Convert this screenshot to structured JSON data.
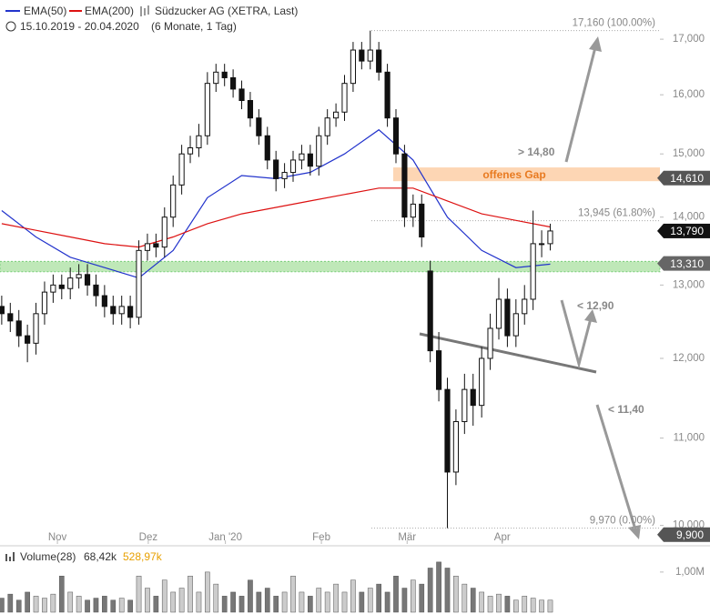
{
  "chart_data": {
    "type": "candlestick",
    "title": "Südzucker AG (XETRA, Last)",
    "subtitle": "15.10.2019 - 20.04.2020",
    "period": "(6 Monate, 1 Tag)",
    "open": [
      12.7,
      12.6,
      12.5,
      12.3,
      12.2,
      12.6,
      12.9,
      13.0,
      12.95,
      13.1,
      13.15,
      13.0,
      12.85,
      12.7,
      12.6,
      12.7,
      12.55,
      13.5,
      13.6,
      13.55,
      14.0,
      14.5,
      15.0,
      15.1,
      15.3,
      16.2,
      16.4,
      16.3,
      16.1,
      15.9,
      15.6,
      15.3,
      14.9,
      14.6,
      14.7,
      14.9,
      15.0,
      14.8,
      15.3,
      15.6,
      15.7,
      16.2,
      16.8,
      16.6,
      16.8,
      16.4,
      15.6,
      15.0,
      14.0,
      14.2,
      13.2,
      12.1,
      11.6,
      10.6,
      11.2,
      11.6,
      11.4,
      12.0,
      12.4,
      12.8,
      12.3,
      12.6,
      12.8,
      13.6,
      13.6
    ],
    "high": [
      12.85,
      12.75,
      12.65,
      12.45,
      12.75,
      13.05,
      13.15,
      13.15,
      13.25,
      13.3,
      13.3,
      13.15,
      13.0,
      12.85,
      12.85,
      12.85,
      13.65,
      13.75,
      13.75,
      14.15,
      14.65,
      15.15,
      15.3,
      15.5,
      16.4,
      16.55,
      16.55,
      16.45,
      16.25,
      16.05,
      15.75,
      15.45,
      15.05,
      14.85,
      15.05,
      15.15,
      15.15,
      15.45,
      15.75,
      15.85,
      16.35,
      16.95,
      16.95,
      17.16,
      16.95,
      16.55,
      15.75,
      15.15,
      14.35,
      14.35,
      13.35,
      12.35,
      11.75,
      11.35,
      11.8,
      11.8,
      12.15,
      12.6,
      13.1,
      12.95,
      12.8,
      13.0,
      14.1,
      13.8,
      13.9
    ],
    "low": [
      12.45,
      12.35,
      12.15,
      11.95,
      12.05,
      12.45,
      12.75,
      12.8,
      12.8,
      12.95,
      12.85,
      12.7,
      12.55,
      12.45,
      12.45,
      12.4,
      12.45,
      13.35,
      13.4,
      13.4,
      13.85,
      14.35,
      14.85,
      14.95,
      15.15,
      16.05,
      16.15,
      15.95,
      15.75,
      15.45,
      15.15,
      14.75,
      14.4,
      14.45,
      14.55,
      14.75,
      14.65,
      14.65,
      15.15,
      15.45,
      15.55,
      16.05,
      16.45,
      16.45,
      16.25,
      15.45,
      14.85,
      13.85,
      13.85,
      13.55,
      11.95,
      11.45,
      9.97,
      10.45,
      11.05,
      11.15,
      11.25,
      11.85,
      12.25,
      12.15,
      12.15,
      12.45,
      12.65,
      13.4,
      13.5
    ],
    "close": [
      12.6,
      12.5,
      12.3,
      12.2,
      12.6,
      12.9,
      13.0,
      12.95,
      13.1,
      13.15,
      13.0,
      12.85,
      12.7,
      12.6,
      12.7,
      12.55,
      13.5,
      13.6,
      13.55,
      14.0,
      14.5,
      15.0,
      15.1,
      15.3,
      16.2,
      16.4,
      16.3,
      16.1,
      15.9,
      15.6,
      15.3,
      14.9,
      14.6,
      14.7,
      14.9,
      15.0,
      14.8,
      15.3,
      15.6,
      15.7,
      16.2,
      16.8,
      16.6,
      16.8,
      16.4,
      15.6,
      15.0,
      14.0,
      14.2,
      13.7,
      12.1,
      11.6,
      10.6,
      11.2,
      11.6,
      11.4,
      12.0,
      12.4,
      12.8,
      12.3,
      12.6,
      12.8,
      13.6,
      13.6,
      13.79
    ],
    "volume": [
      0.35,
      0.45,
      0.3,
      0.5,
      0.4,
      0.35,
      0.45,
      0.9,
      0.5,
      0.4,
      0.3,
      0.35,
      0.4,
      0.3,
      0.35,
      0.3,
      0.9,
      0.6,
      0.4,
      0.8,
      0.5,
      0.6,
      0.9,
      0.5,
      1.0,
      0.7,
      0.4,
      0.5,
      0.4,
      0.8,
      0.5,
      0.6,
      0.4,
      0.5,
      0.9,
      0.5,
      0.4,
      0.6,
      0.5,
      0.7,
      0.5,
      0.8,
      0.5,
      0.6,
      0.7,
      0.5,
      0.9,
      0.6,
      0.8,
      0.7,
      1.1,
      1.25,
      1.1,
      0.9,
      0.7,
      0.6,
      0.5,
      0.4,
      0.45,
      0.4,
      0.3,
      0.4,
      0.35,
      0.3,
      0.3
    ],
    "series": [
      {
        "name": "EMA(50)",
        "color": "#2233cc",
        "x": [
          0,
          4,
          8,
          12,
          16,
          20,
          24,
          28,
          32,
          36,
          40,
          44,
          48,
          52,
          56,
          60,
          64
        ],
        "values": [
          14.1,
          13.7,
          13.4,
          13.25,
          13.1,
          13.5,
          14.3,
          14.65,
          14.6,
          14.7,
          15.0,
          15.4,
          14.9,
          14.0,
          13.5,
          13.25,
          13.3
        ]
      },
      {
        "name": "EMA(200)",
        "color": "#dd1111",
        "x": [
          0,
          4,
          8,
          12,
          16,
          20,
          24,
          28,
          32,
          36,
          40,
          44,
          48,
          52,
          56,
          60,
          64
        ],
        "values": [
          13.9,
          13.8,
          13.7,
          13.6,
          13.55,
          13.7,
          13.9,
          14.05,
          14.15,
          14.25,
          14.35,
          14.45,
          14.45,
          14.25,
          14.05,
          13.95,
          13.85
        ]
      }
    ],
    "xlim": [
      -0.2,
      76.8
    ],
    "xticks": [
      {
        "value": 6.5,
        "label": "Nov"
      },
      {
        "value": 17.1,
        "label": "Dez"
      },
      {
        "value": 26.1,
        "label": "Jan '20"
      },
      {
        "value": 37.3,
        "label": "Feb"
      },
      {
        "value": 47.3,
        "label": "Mär"
      },
      {
        "value": 58.4,
        "label": "Apr"
      }
    ],
    "log_scale": true,
    "ylim": [
      9.8,
      17.36
    ],
    "yticks": [
      {
        "value": 10,
        "label": "10,000"
      },
      {
        "value": 11,
        "label": "11,000"
      },
      {
        "value": 12,
        "label": "12,000"
      },
      {
        "value": 13,
        "label": "13,000"
      },
      {
        "value": 14,
        "label": "14,000"
      },
      {
        "value": 15,
        "label": "15,000"
      },
      {
        "value": 16,
        "label": "16,000"
      },
      {
        "value": 17,
        "label": "17,000"
      }
    ],
    "levels": [
      {
        "value": 17.16,
        "label": "17,160 (100.00%)"
      },
      {
        "value": 13.945,
        "label": "13,945 (61.80%)"
      },
      {
        "value": 9.97,
        "label": "9,970 (0.00%)"
      }
    ],
    "price_markers": [
      {
        "value": 14.61,
        "label": "14,610",
        "color": "#555555"
      },
      {
        "value": 13.79,
        "label": "13,790",
        "color": "#111111"
      },
      {
        "value": 13.31,
        "label": "13,310",
        "color": "#666666"
      },
      {
        "value": 9.9,
        "label": "9,900",
        "color": "#555555"
      }
    ],
    "support_band": {
      "range": [
        13.19,
        13.34
      ],
      "color": "#bfe8b8"
    },
    "gap_band": {
      "label": "offenes Gap",
      "range": [
        14.56,
        14.78
      ],
      "color": "#fdd6b4"
    },
    "annotations": [
      "> 14,80",
      "< 12,90",
      "< 11,40"
    ],
    "volume_legend": {
      "name": "Volume(28)",
      "value": "68,42k",
      "average": "528,97k"
    },
    "volume_ylim": [
      0,
      1.36
    ],
    "volume_ticks": [
      {
        "value": 1,
        "label": "1,00M"
      }
    ]
  }
}
